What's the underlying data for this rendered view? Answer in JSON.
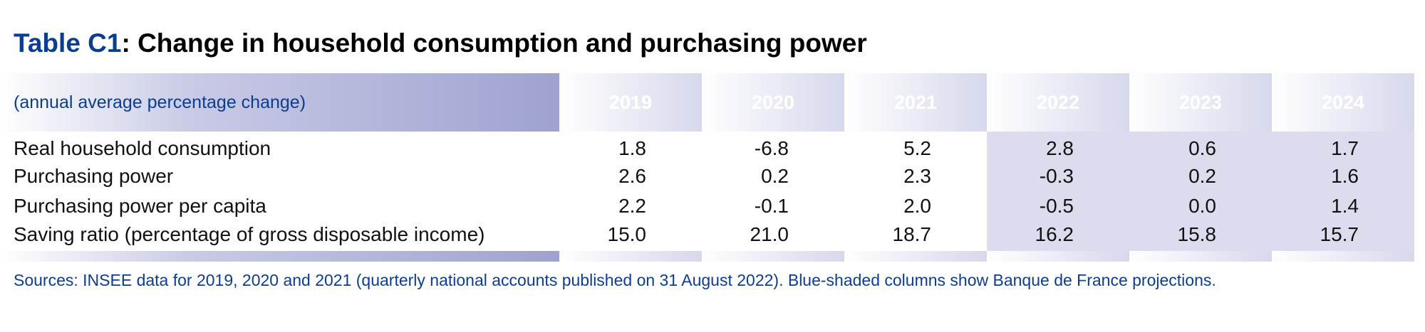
{
  "title": {
    "label": "Table C1",
    "text": ": Change in household consumption and purchasing power"
  },
  "table": {
    "unit_note": "(annual average percentage change)",
    "years": [
      "2019",
      "2020",
      "2021",
      "2022",
      "2023",
      "2024"
    ],
    "rows": [
      {
        "label": "Real household consumption",
        "values": [
          "1.8",
          "-6.8",
          "5.2",
          "2.8",
          "0.6",
          "1.7"
        ]
      },
      {
        "label": "Purchasing power",
        "values": [
          "2.6",
          "0.2",
          "2.3",
          "-0.3",
          "0.2",
          "1.6"
        ]
      },
      {
        "label": "Purchasing power per capita",
        "values": [
          "2.2",
          "-0.1",
          "2.0",
          "-0.5",
          "0.0",
          "1.4"
        ]
      },
      {
        "label": "Saving ratio (percentage of gross disposable income)",
        "values": [
          "15.0",
          "21.0",
          "18.7",
          "16.2",
          "15.8",
          "15.7"
        ]
      }
    ]
  },
  "source": "Sources: INSEE data for 2019, 2020 and 2021 (quarterly national accounts published on 31 August 2022). Blue-shaded columns show Banque de France projections.",
  "colors": {
    "title_label": "#0b3d91",
    "header_gradient_end": "#0b45a0",
    "projection_shade": "#dcdcee",
    "source_text": "#0b3d91"
  }
}
